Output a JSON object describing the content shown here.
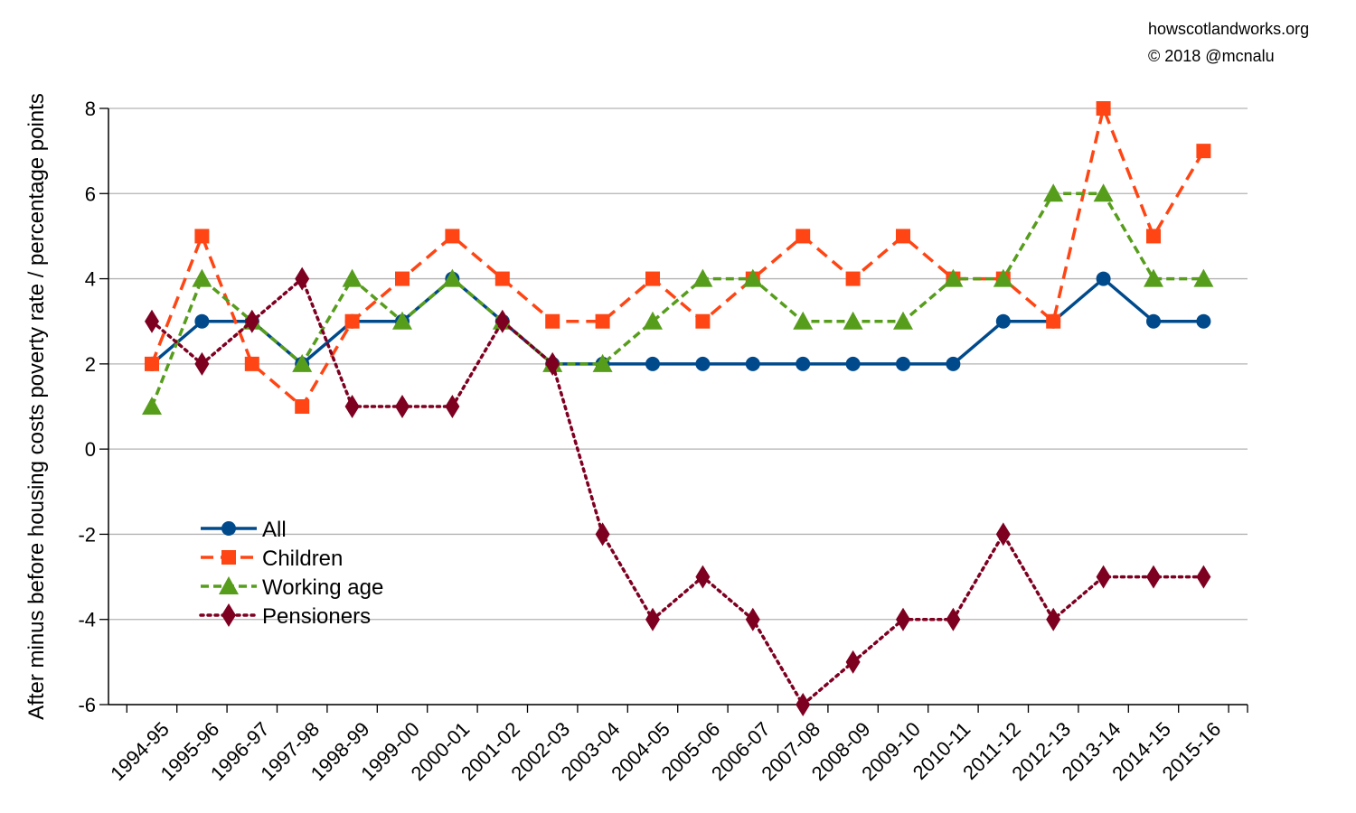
{
  "credits": {
    "line1": "howscotlandworks.org",
    "line2": "© 2018  @mcnalu"
  },
  "chart_data": {
    "type": "line",
    "title": "",
    "xlabel": "",
    "ylabel": "After minus before housing costs poverty rate / percentage points",
    "ylim": [
      -6,
      8
    ],
    "yticks": [
      -6,
      -4,
      -2,
      0,
      2,
      4,
      6,
      8
    ],
    "grid": true,
    "legend_position": "lower-left",
    "categories": [
      "1994-95",
      "1995-96",
      "1996-97",
      "1997-98",
      "1998-99",
      "1999-00",
      "2000-01",
      "2001-02",
      "2002-03",
      "2003-04",
      "2004-05",
      "2005-06",
      "2006-07",
      "2007-08",
      "2008-09",
      "2009-10",
      "2010-11",
      "2011-12",
      "2012-13",
      "2013-14",
      "2014-15",
      "2015-16"
    ],
    "series": [
      {
        "name": "All",
        "color": "#004a8c",
        "marker": "circle",
        "dash": "solid",
        "values": [
          2,
          3,
          3,
          2,
          3,
          3,
          4,
          3,
          2,
          2,
          2,
          2,
          2,
          2,
          2,
          2,
          2,
          3,
          3,
          4,
          3,
          3
        ]
      },
      {
        "name": "Children",
        "color": "#ff4513",
        "marker": "square",
        "dash": "dashed",
        "values": [
          2,
          5,
          2,
          1,
          3,
          4,
          5,
          4,
          3,
          3,
          4,
          3,
          4,
          5,
          4,
          5,
          4,
          4,
          3,
          8,
          5,
          7
        ]
      },
      {
        "name": "Working age",
        "color": "#579d1c",
        "marker": "triangle",
        "dash": "short-dashed",
        "values": [
          1,
          4,
          3,
          2,
          4,
          3,
          4,
          3,
          2,
          2,
          3,
          4,
          4,
          3,
          3,
          3,
          4,
          4,
          6,
          6,
          4,
          4
        ]
      },
      {
        "name": "Pensioners",
        "color": "#7e0021",
        "marker": "diamond",
        "dash": "dotted",
        "values": [
          3,
          2,
          3,
          4,
          1,
          1,
          1,
          3,
          2,
          -2,
          -4,
          -3,
          -4,
          -6,
          -5,
          -4,
          -4,
          -2,
          -4,
          -3,
          -3,
          -3
        ]
      }
    ]
  }
}
